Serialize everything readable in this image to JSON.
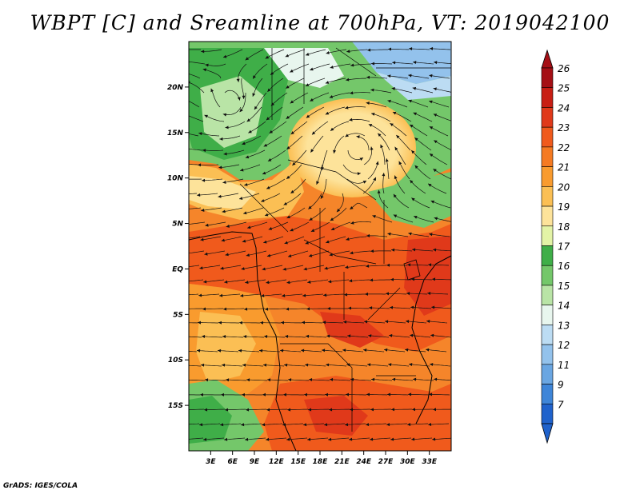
{
  "title": "WBPT [C] and Sreamline at 700hPa, VT: 2019042100",
  "footer": "GrADS: IGES/COLA",
  "map": {
    "lon_range": [
      0,
      36
    ],
    "lat_range": [
      -20,
      25
    ],
    "lat_ticks": [
      {
        "value": 20,
        "label": "20N"
      },
      {
        "value": 15,
        "label": "15N"
      },
      {
        "value": 10,
        "label": "10N"
      },
      {
        "value": 5,
        "label": "5N"
      },
      {
        "value": 0,
        "label": "EQ"
      },
      {
        "value": -5,
        "label": "5S"
      },
      {
        "value": -10,
        "label": "10S"
      },
      {
        "value": -15,
        "label": "15S"
      }
    ],
    "lon_ticks": [
      {
        "value": 3,
        "label": "3E"
      },
      {
        "value": 6,
        "label": "6E"
      },
      {
        "value": 9,
        "label": "9E"
      },
      {
        "value": 12,
        "label": "12E"
      },
      {
        "value": 15,
        "label": "15E"
      },
      {
        "value": 18,
        "label": "18E"
      },
      {
        "value": 21,
        "label": "21E"
      },
      {
        "value": 24,
        "label": "24E"
      },
      {
        "value": 27,
        "label": "27E"
      },
      {
        "value": 30,
        "label": "30E"
      },
      {
        "value": 33,
        "label": "33E"
      }
    ]
  },
  "colorbar": {
    "levels": [
      {
        "label": "26",
        "color": "#a50f15"
      },
      {
        "label": "25",
        "color": "#c81e14"
      },
      {
        "label": "24",
        "color": "#e0391a"
      },
      {
        "label": "23",
        "color": "#f05a1c"
      },
      {
        "label": "22",
        "color": "#f57a22"
      },
      {
        "label": "21",
        "color": "#f99b2e"
      },
      {
        "label": "20",
        "color": "#fbbf54"
      },
      {
        "label": "19",
        "color": "#fde39a"
      },
      {
        "label": "18",
        "color": "#e3f3a6"
      },
      {
        "label": "17",
        "color": "#3fae48"
      },
      {
        "label": "16",
        "color": "#74c76a"
      },
      {
        "label": "15",
        "color": "#b9e4a6"
      },
      {
        "label": "14",
        "color": "#e8f6ee"
      },
      {
        "label": "13",
        "color": "#bcdcf3"
      },
      {
        "label": "12",
        "color": "#93c2ec"
      },
      {
        "label": "11",
        "color": "#6aa6e2"
      },
      {
        "label": "9",
        "color": "#3e85d8"
      },
      {
        "label": "7",
        "color": "#1f62cc"
      }
    ],
    "over_color": "#a50f15",
    "under_color": "#1f62cc"
  }
}
